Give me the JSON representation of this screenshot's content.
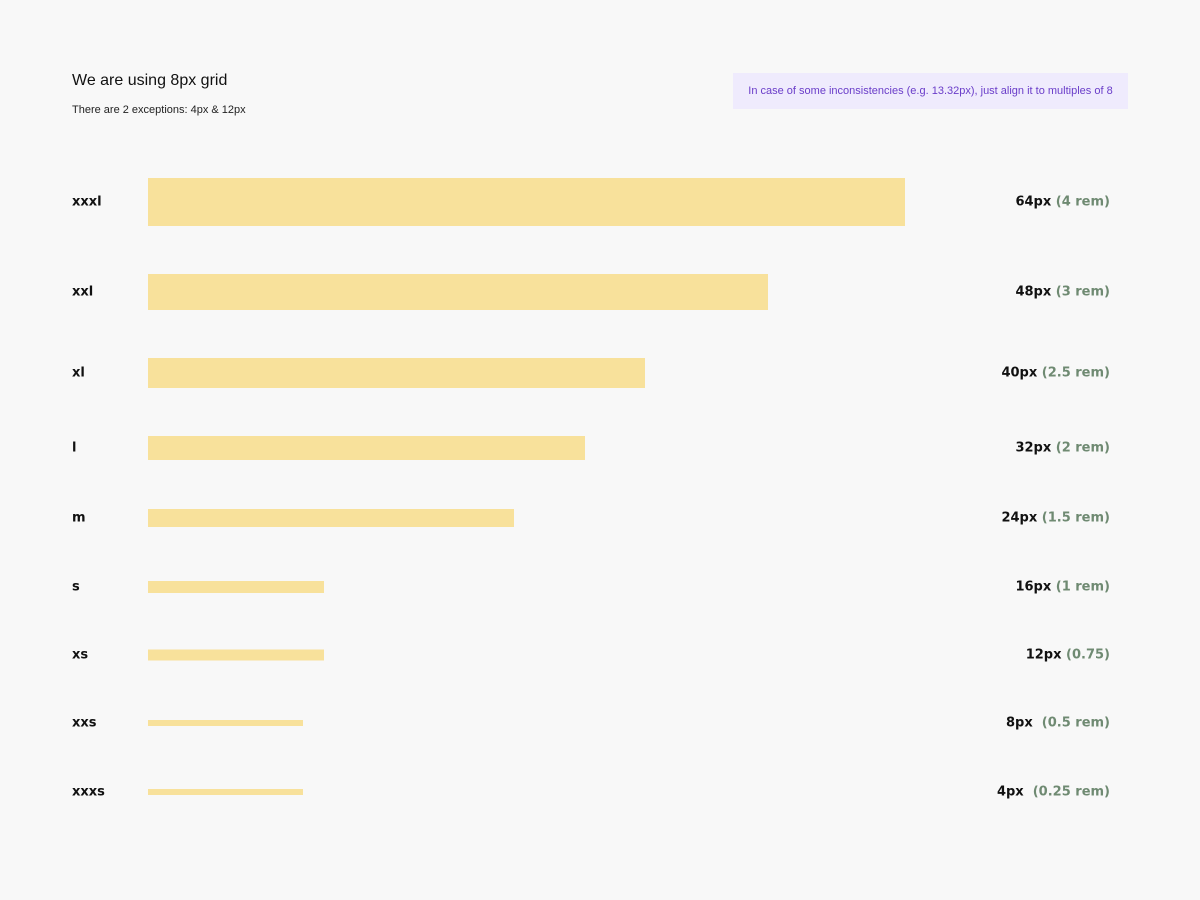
{
  "header": {
    "title": "We are using 8px grid",
    "subtitle": "There are 2 exceptions: 4px & 12px",
    "note": "In case of some inconsistencies (e.g. 13.32px), just align it to multiples of 8"
  },
  "colors": {
    "bar": "#f8e19b",
    "note_bg": "#efebfd",
    "note_text": "#6a3dc9",
    "rem_text": "#6f8a72"
  },
  "spacing": [
    {
      "name": "xxxl",
      "px": "64px",
      "rem": " (4 rem)",
      "value": 64
    },
    {
      "name": "xxl",
      "px": "48px",
      "rem": " (3 rem)",
      "value": 48
    },
    {
      "name": "xl",
      "px": "40px",
      "rem": " (2.5 rem)",
      "value": 40
    },
    {
      "name": "l",
      "px": "32px",
      "rem": " (2 rem)",
      "value": 32
    },
    {
      "name": "m",
      "px": "24px",
      "rem": " (1.5 rem)",
      "value": 24
    },
    {
      "name": "s",
      "px": "16px",
      "rem": " (1 rem)",
      "value": 16
    },
    {
      "name": "xs",
      "px": "12px",
      "rem": " (0.75)",
      "value": 12
    },
    {
      "name": "xxs",
      "px": "8px",
      "rem": "  (0.5 rem)",
      "value": 8
    },
    {
      "name": "xxxs",
      "px": "4px",
      "rem": "  (0.25 rem)",
      "value": 4
    }
  ]
}
